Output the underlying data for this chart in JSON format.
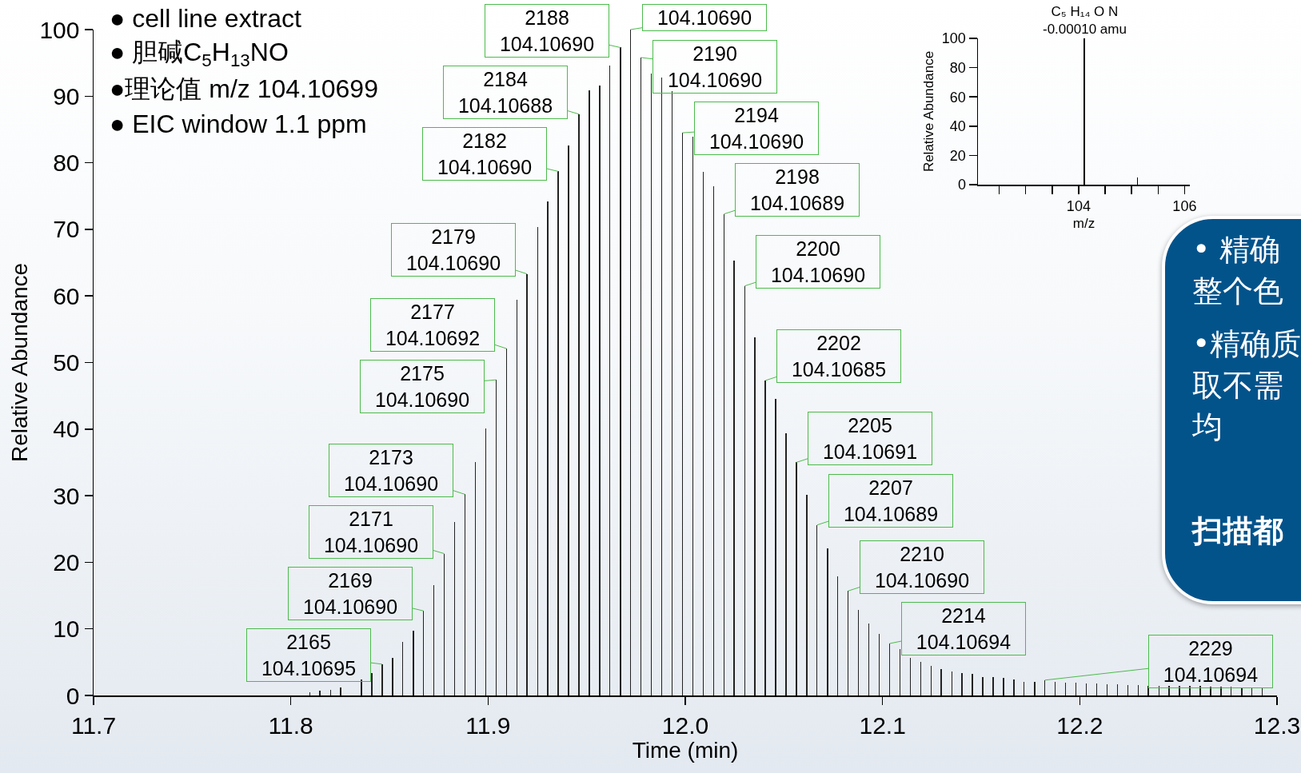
{
  "chart_data": [
    {
      "type": "bar",
      "xlabel": "Time (min)",
      "ylabel": "Relative Abundance",
      "color": "#222222",
      "xlim": [
        11.7,
        12.3
      ],
      "xticks": [
        11.7,
        11.8,
        11.9,
        {
          "value": 12,
          "label": "12.0"
        },
        12.1,
        12.2,
        12.3
      ],
      "ylim": [
        0,
        100
      ],
      "yticks": [
        0,
        10,
        20,
        30,
        40,
        50,
        60,
        70,
        80,
        90,
        100
      ],
      "x": [
        11.8096,
        11.8148,
        11.8201,
        11.8253,
        11.8306,
        11.8358,
        11.8411,
        11.8463,
        11.8516,
        11.8568,
        11.8621,
        11.8673,
        11.8726,
        11.8778,
        11.8831,
        11.8883,
        11.8936,
        11.8988,
        11.9041,
        11.9093,
        11.9146,
        11.9198,
        11.9251,
        11.9303,
        11.9356,
        11.9408,
        11.9461,
        11.9513,
        11.9566,
        11.9618,
        11.9671,
        11.9723,
        11.9776,
        11.9828,
        11.9881,
        11.9933,
        11.9986,
        12.0038,
        12.0091,
        12.0143,
        12.0196,
        12.0248,
        12.0301,
        12.0353,
        12.0406,
        12.0458,
        12.0511,
        12.0563,
        12.0616,
        12.0668,
        12.0721,
        12.0773,
        12.0826,
        12.0878,
        12.0931,
        12.0983,
        12.1036,
        12.1088,
        12.1141,
        12.1193,
        12.1246,
        12.1298,
        12.1351,
        12.1403,
        12.1456,
        12.1508,
        12.1561,
        12.1613,
        12.1666,
        12.1718,
        12.1771,
        12.1823,
        12.1876,
        12.1928,
        12.1981,
        12.2033,
        12.2086,
        12.2138,
        12.2191,
        12.2243,
        12.2296,
        12.2348,
        12.2401,
        12.2453,
        12.2506,
        12.2558,
        12.2611,
        12.2663,
        12.2716,
        12.2768,
        12.2821,
        12.2873,
        12.2926
      ],
      "values": [
        0.5,
        0.7,
        0.9,
        1.2,
        null,
        2.4,
        3.4,
        4.7,
        5.6,
        8.1,
        9.7,
        12.7,
        16.6,
        21.3,
        26.0,
        30.2,
        35.1,
        40.1,
        47.4,
        52.1,
        59.4,
        63.3,
        70.3,
        74.2,
        78.7,
        82.6,
        87.3,
        90.9,
        91.6,
        94.6,
        97.3,
        100,
        95.8,
        93.4,
        92.8,
        90.8,
        84.5,
        83.9,
        78.6,
        76.5,
        72.3,
        65.3,
        61.5,
        53.8,
        47.3,
        44.5,
        39.4,
        35.0,
        30.1,
        25.6,
        22.1,
        17.9,
        15.7,
        12.9,
        10.8,
        9.3,
        7.8,
        7.0,
        5.7,
        5.0,
        4.4,
        4.0,
        3.6,
        3.4,
        3.2,
        2.8,
        2.8,
        2.7,
        2.4,
        2.1,
        2.1,
        2.3,
        2.0,
        1.9,
        1.9,
        1.8,
        1.8,
        1.7,
        1.7,
        1.6,
        1.6,
        1.5,
        1.5,
        1.5,
        1.4,
        1.4,
        1.4,
        1.3,
        1.3,
        1.3,
        1.2,
        1.2,
        1.2
      ],
      "annotations": [
        "● cell line extract",
        "● 胆碱C$_{5}$H$_{13}$NO",
        "●理论值 m/z 104.10699",
        "● EIC window 1.1 ppm",
        {
          "text": "2165\n104.10695",
          "x": 11.8463,
          "y": 4.7
        },
        {
          "text": "2169\n104.10690",
          "x": 11.8673,
          "y": 12.7
        },
        {
          "text": "2171\n104.10690",
          "x": 11.8778,
          "y": 21.3
        },
        {
          "text": "2173\n104.10690",
          "x": 11.8883,
          "y": 30.2
        },
        {
          "text": "2175\n104.10690",
          "x": 11.9041,
          "y": 47.4
        },
        {
          "text": "2177\n104.10692",
          "x": 11.9093,
          "y": 52.1
        },
        {
          "text": "2179\n104.10690",
          "x": 11.9198,
          "y": 63.3
        },
        {
          "text": "2182\n104.10690",
          "x": 11.9356,
          "y": 78.7
        },
        {
          "text": "2184\n104.10688",
          "x": 11.9461,
          "y": 87.3
        },
        {
          "text": "2188\n104.10690",
          "x": 11.9671,
          "y": 97.3
        },
        {
          "text": "104.10690",
          "x": 11.9723,
          "y": 100
        },
        {
          "text": "2190\n104.10690",
          "x": 11.9776,
          "y": 95.8
        },
        {
          "text": "2194\n104.10690",
          "x": 11.9986,
          "y": 84.5
        },
        {
          "text": "2198\n104.10689",
          "x": 12.0196,
          "y": 72.3
        },
        {
          "text": "2200\n104.10690",
          "x": 12.0301,
          "y": 61.5
        },
        {
          "text": "2202\n104.10685",
          "x": 12.0406,
          "y": 47.3
        },
        {
          "text": "2205\n104.10691",
          "x": 12.0563,
          "y": 35.0
        },
        {
          "text": "2207\n104.10689",
          "x": 12.0668,
          "y": 25.6
        },
        {
          "text": "2210\n104.10690",
          "x": 12.0826,
          "y": 15.7
        },
        {
          "text": "2214\n104.10694",
          "x": 12.1036,
          "y": 7.8
        },
        {
          "text": "2229\n104.10694",
          "x": 12.1823,
          "y": 2.3
        }
      ]
    },
    {
      "type": "bar",
      "xlabel": "m/z",
      "ylabel": "Relative Abundance",
      "color": "#000000",
      "xlim": [
        102.1,
        106.1
      ],
      "xticks": [
        {
          "value": 102.5,
          "label": null
        },
        {
          "value": 103,
          "label": null
        },
        {
          "value": 103.5,
          "label": null
        },
        104,
        {
          "value": 104.5,
          "label": null
        },
        {
          "value": 105,
          "label": null
        },
        {
          "value": 105.5,
          "label": null
        },
        106
      ],
      "ylim": [
        0,
        100
      ],
      "yticks": [
        0,
        20,
        40,
        60,
        80,
        100
      ],
      "x": [
        104.11,
        105.11
      ],
      "values": [
        100,
        4.9
      ],
      "annotations": [
        {
          "text": "C₅ H₁₄ O N\n-0.00010 amu",
          "x": 104.11,
          "y": 100
        }
      ]
    },
    {
      "type": "other",
      "annotations": [
        "• 精确",
        "整个色",
        "•精确质",
        "取不需",
        "均",
        "扫描都"
      ]
    }
  ]
}
